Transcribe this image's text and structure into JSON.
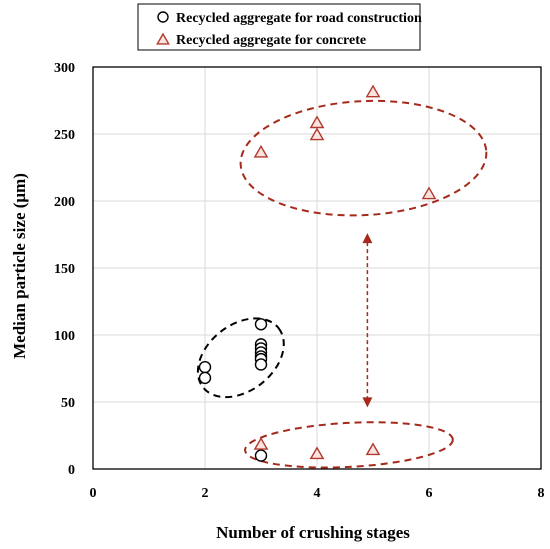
{
  "chart_data": {
    "type": "scatter",
    "xlabel": "Number of crushing stages",
    "ylabel": "Median particle size (μm)",
    "xlim": [
      0,
      8
    ],
    "ylim": [
      0,
      300
    ],
    "xticks": [
      0,
      2,
      4,
      6,
      8
    ],
    "yticks": [
      0,
      50,
      100,
      150,
      200,
      250,
      300
    ],
    "grid": true,
    "legend_position": "top",
    "series": [
      {
        "name": "Recycled aggregate for road construction",
        "marker": "circle",
        "color": "#000000",
        "points": [
          {
            "x": 2,
            "y": 76
          },
          {
            "x": 2,
            "y": 68
          },
          {
            "x": 3,
            "y": 108
          },
          {
            "x": 3,
            "y": 93
          },
          {
            "x": 3,
            "y": 90
          },
          {
            "x": 3,
            "y": 87
          },
          {
            "x": 3,
            "y": 84
          },
          {
            "x": 3,
            "y": 82
          },
          {
            "x": 3,
            "y": 78
          },
          {
            "x": 3,
            "y": 10
          }
        ]
      },
      {
        "name": "Recycled aggregate for concrete",
        "marker": "triangle",
        "color": "#b03a2e",
        "points": [
          {
            "x": 3,
            "y": 236
          },
          {
            "x": 4,
            "y": 258
          },
          {
            "x": 4,
            "y": 249
          },
          {
            "x": 5,
            "y": 281
          },
          {
            "x": 6,
            "y": 205
          },
          {
            "x": 3,
            "y": 18
          },
          {
            "x": 4,
            "y": 11
          },
          {
            "x": 5,
            "y": 14
          }
        ]
      }
    ],
    "annotations": {
      "ellipse_color_concrete": "#a52a1c",
      "ellipse_color_road": "#000000",
      "arrow_color": "#a52a1c"
    }
  }
}
